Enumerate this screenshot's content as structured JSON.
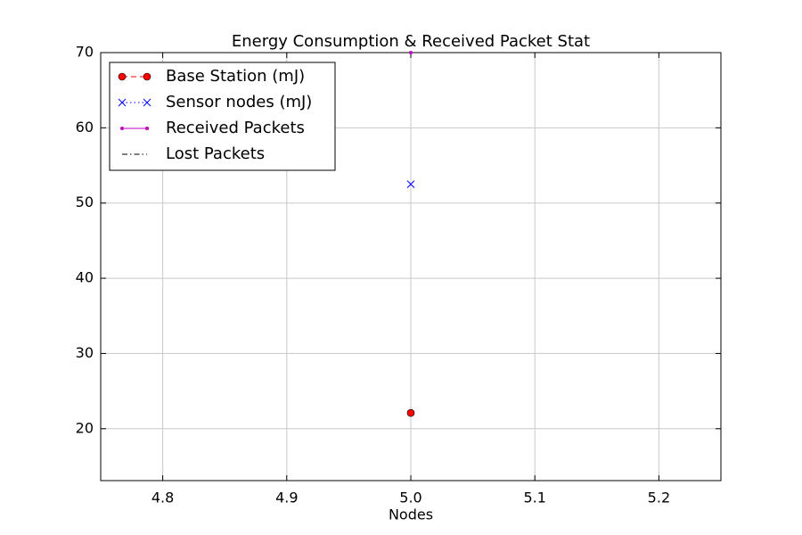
{
  "chart_data": {
    "type": "line",
    "title": "Energy Consumption & Received Packet Stat",
    "xlabel": "Nodes",
    "x": [
      5.0
    ],
    "series": [
      {
        "name": "Base Station (mJ)",
        "color": "#ff0000",
        "marker": "o",
        "linestyle": "--",
        "values": [
          22.1
        ]
      },
      {
        "name": "Sensor nodes (mJ)",
        "color": "#0000ff",
        "marker": "x",
        "linestyle": ":",
        "values": [
          52.5
        ]
      },
      {
        "name": "Received Packets",
        "color": "#bf00bf",
        "marker": ".",
        "linestyle": "-",
        "values": [
          70
        ]
      },
      {
        "name": "Lost Packets",
        "color": "#000000",
        "marker": "none",
        "linestyle": "-.",
        "values": [
          null
        ]
      }
    ],
    "xlim": [
      4.75,
      5.25
    ],
    "xticks": [
      4.8,
      4.9,
      {
        "value": 5,
        "label": "5.0"
      },
      5.1,
      5.2
    ],
    "ylim": [
      13.1,
      70
    ],
    "yticks": [
      20,
      30,
      40,
      50,
      60,
      70
    ],
    "grid": true,
    "legend": "upper left"
  }
}
